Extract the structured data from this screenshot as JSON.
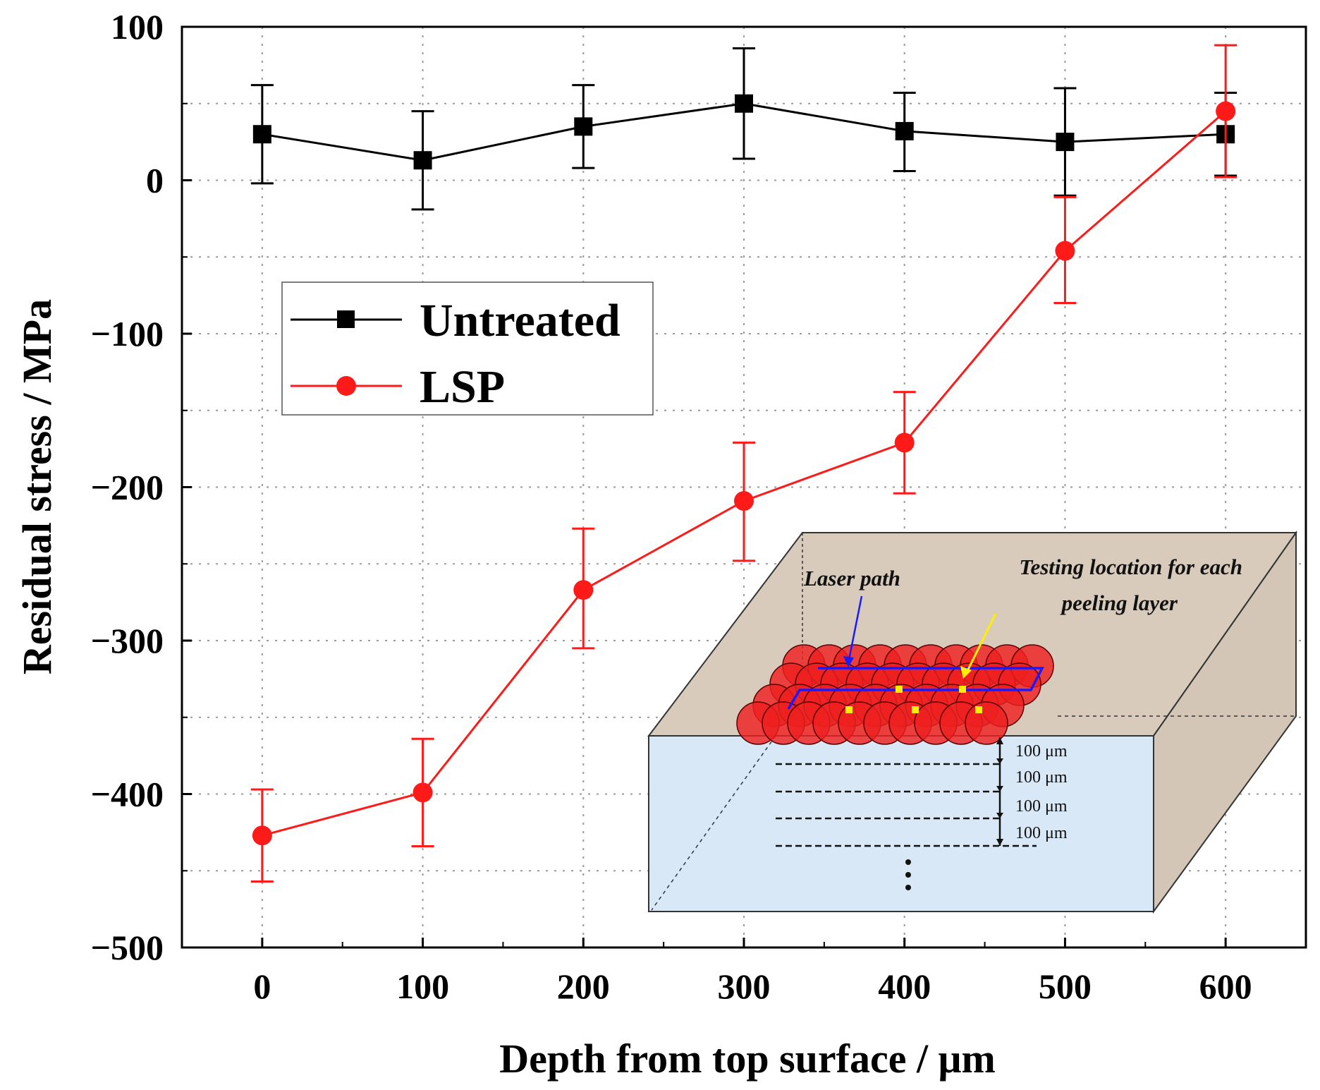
{
  "chart_data": {
    "type": "line",
    "title": "",
    "xlabel": "Depth from top surface / μm",
    "ylabel": "Residual stress / MPa",
    "x": [
      0,
      100,
      200,
      300,
      400,
      500,
      600
    ],
    "xlim": [
      -50,
      650
    ],
    "ylim": [
      -500,
      100
    ],
    "xticks": [
      "0",
      "100",
      "200",
      "300",
      "400",
      "500",
      "600"
    ],
    "yticks": [
      "100",
      "0",
      "−100",
      "−200",
      "−300",
      "−400",
      "−500"
    ],
    "grid": true,
    "legend_position": "upper-left",
    "series": [
      {
        "name": "Untreated",
        "color": "#000000",
        "marker": "square",
        "values": [
          30,
          13,
          35,
          50,
          32,
          25,
          30
        ],
        "error_low": [
          -2,
          -19,
          8,
          14,
          6,
          -10,
          3
        ],
        "error_high": [
          62,
          45,
          62,
          86,
          57,
          60,
          57
        ]
      },
      {
        "name": "LSP",
        "color": "#ff1a1a",
        "marker": "circle",
        "values": [
          -427,
          -399,
          -267,
          -209,
          -171,
          -46,
          45
        ],
        "error_low": [
          -457,
          -434,
          -305,
          -248,
          -204,
          -80,
          2
        ],
        "error_high": [
          -397,
          -364,
          -227,
          -171,
          -138,
          -11,
          88
        ]
      }
    ],
    "inset": {
      "labels": {
        "laser_path": "Laser path",
        "testing_location_line1": "Testing location for each",
        "testing_location_line2": "peeling layer"
      },
      "layer_labels": [
        "100 μm",
        "100 μm",
        "100 μm",
        "100 μm"
      ],
      "colors": {
        "top_face": "#d8cbbc",
        "front_face": "#d9e8f6",
        "side_face": "#d4c6b6",
        "spots": "#ee2020",
        "laser_path": "#1a1aff",
        "test_points": "#ffee00"
      }
    }
  }
}
